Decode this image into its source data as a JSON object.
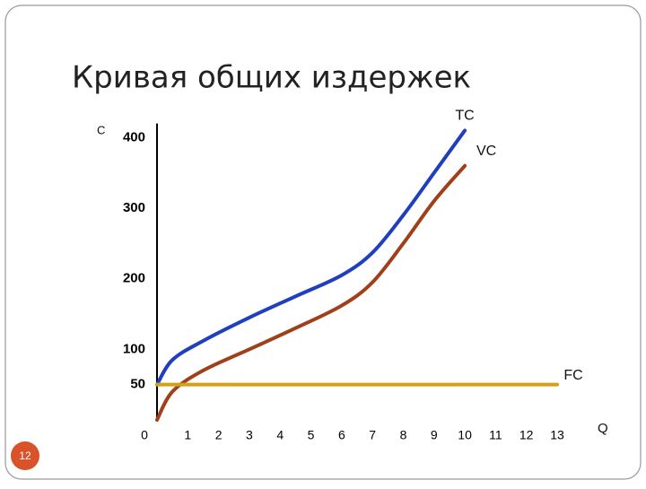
{
  "slide_number": "12",
  "chart_data": {
    "type": "line",
    "title": "Кривая общих издержек",
    "y_label": "C",
    "x_label": "Q",
    "xlim": [
      0,
      13
    ],
    "ylim": [
      0,
      420
    ],
    "xticks": [
      0,
      1,
      2,
      3,
      4,
      5,
      6,
      7,
      8,
      9,
      10,
      11,
      12,
      13
    ],
    "yticks": [
      50,
      100,
      200,
      300,
      400
    ],
    "series": [
      {
        "name": "TC",
        "color": "#1f3fbf",
        "x": [
          0,
          0.5,
          1.5,
          3,
          4.5,
          6,
          7,
          8,
          9,
          10
        ],
        "values": [
          50,
          85,
          112,
          145,
          175,
          205,
          237,
          290,
          350,
          410
        ]
      },
      {
        "name": "VC",
        "color": "#a0401a",
        "x": [
          0,
          0.5,
          1.5,
          3,
          4.5,
          6,
          7,
          8,
          9,
          10
        ],
        "values": [
          0,
          40,
          70,
          100,
          130,
          162,
          195,
          250,
          310,
          360
        ]
      },
      {
        "name": "FC",
        "color": "#d4a017",
        "x": [
          0,
          13
        ],
        "values": [
          50,
          50
        ]
      }
    ]
  }
}
